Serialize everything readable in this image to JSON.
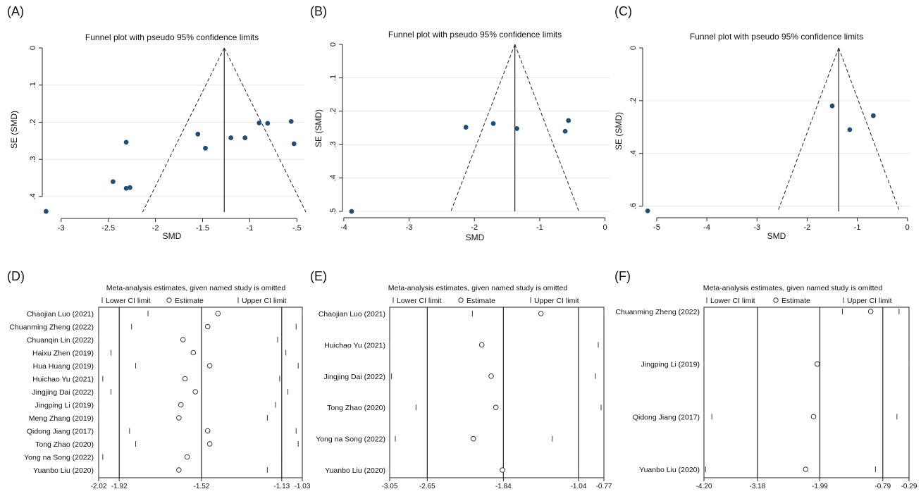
{
  "chart_data": [
    {
      "type": "scatter",
      "panel_label": "(A)",
      "title": "Funnel plot with pseudo 95% confidence limits",
      "xlabel": "SMD",
      "ylabel": "SE (SMD)",
      "x_ticks": [
        -3,
        -2.5,
        -2,
        -1.5,
        -1,
        -0.5
      ],
      "x_tick_labels": [
        "-3",
        "-2.5",
        "-2",
        "-1.5",
        "-1",
        "-.5"
      ],
      "y_ticks": [
        0,
        0.1,
        0.2,
        0.3,
        0.4
      ],
      "y_tick_labels": [
        "0",
        ".1",
        ".2",
        ".3",
        ".4"
      ],
      "xlim": [
        -3.2,
        -0.42
      ],
      "ylim": [
        0,
        0.442
      ],
      "pooled_smd": -1.27,
      "grid": true,
      "points": [
        {
          "x": -3.16,
          "y": 0.44
        },
        {
          "x": -2.45,
          "y": 0.36
        },
        {
          "x": -2.31,
          "y": 0.378
        },
        {
          "x": -2.27,
          "y": 0.376
        },
        {
          "x": -2.31,
          "y": 0.254
        },
        {
          "x": -1.55,
          "y": 0.232
        },
        {
          "x": -1.47,
          "y": 0.27
        },
        {
          "x": -1.2,
          "y": 0.242
        },
        {
          "x": -1.05,
          "y": 0.242
        },
        {
          "x": -0.9,
          "y": 0.202
        },
        {
          "x": -0.81,
          "y": 0.203
        },
        {
          "x": -0.56,
          "y": 0.198
        },
        {
          "x": -0.53,
          "y": 0.258
        }
      ]
    },
    {
      "type": "scatter",
      "panel_label": "(B)",
      "title": "Funnel plot with pseudo 95% confidence limits",
      "xlabel": "SMD",
      "ylabel": "SE (SMD)",
      "x_ticks": [
        -4,
        -3,
        -2,
        -1,
        0
      ],
      "x_tick_labels": [
        "-4",
        "-3",
        "-2",
        "-1",
        "0"
      ],
      "y_ticks": [
        0,
        0.1,
        0.2,
        0.3,
        0.4,
        0.5
      ],
      "y_tick_labels": [
        "0",
        ".1",
        ".2",
        ".3",
        ".4",
        ".5"
      ],
      "xlim": [
        -4.02,
        0.08
      ],
      "ylim": [
        0,
        0.5
      ],
      "pooled_smd": -1.38,
      "grid": true,
      "points": [
        {
          "x": -3.88,
          "y": 0.5
        },
        {
          "x": -2.13,
          "y": 0.248
        },
        {
          "x": -1.71,
          "y": 0.237
        },
        {
          "x": -1.35,
          "y": 0.252
        },
        {
          "x": -0.61,
          "y": 0.26
        },
        {
          "x": -0.56,
          "y": 0.228
        }
      ]
    },
    {
      "type": "scatter",
      "panel_label": "(C)",
      "title": "Funnel plot with pseudo 95% confidence limits",
      "xlabel": "SMD",
      "ylabel": "SE (SMD)",
      "x_ticks": [
        -5,
        -4,
        -3,
        -2,
        -1,
        0
      ],
      "x_tick_labels": [
        "-5",
        "-4",
        "-3",
        "-2",
        "-1",
        "0"
      ],
      "y_ticks": [
        0,
        0.2,
        0.4,
        0.6
      ],
      "y_tick_labels": [
        "0",
        ".2",
        ".4",
        ".6"
      ],
      "xlim": [
        -5.28,
        0.06
      ],
      "ylim": [
        0,
        0.62
      ],
      "pooled_smd": -1.37,
      "grid": true,
      "points": [
        {
          "x": -5.18,
          "y": 0.618
        },
        {
          "x": -1.5,
          "y": 0.22
        },
        {
          "x": -1.15,
          "y": 0.31
        },
        {
          "x": -0.68,
          "y": 0.257
        }
      ]
    },
    {
      "type": "sensitivity",
      "panel_label": "(D)",
      "title": "Meta-analysis estimates, given named study is omitted",
      "legend": [
        "Lower CI limit",
        "Estimate",
        "Upper CI limit"
      ],
      "x_ticks": [
        -2.02,
        -1.92,
        -1.52,
        -1.13,
        -1.03
      ],
      "x_tick_labels": [
        "-2.02",
        "-1.92",
        "-1.52",
        "-1.13",
        "-1.03"
      ],
      "xlim": [
        -2.02,
        -1.03
      ],
      "reference_lines": [
        -1.92,
        -1.52,
        -1.13
      ],
      "studies": [
        {
          "name": "Chaojian Luo (2021)",
          "lower": -1.78,
          "estimate": -1.44,
          "upper": -1.03
        },
        {
          "name": "Chuanming Zheng (2022)",
          "lower": -1.86,
          "estimate": -1.49,
          "upper": -1.06
        },
        {
          "name": "Chuanqin Lin (2022)",
          "lower": -2.02,
          "estimate": -1.61,
          "upper": -1.15
        },
        {
          "name": "Haixu Zhen (2019)",
          "lower": -1.96,
          "estimate": -1.56,
          "upper": -1.11
        },
        {
          "name": "Hua Huang (2019)",
          "lower": -1.84,
          "estimate": -1.48,
          "upper": -1.05
        },
        {
          "name": "Huichao Yu (2021)",
          "lower": -2.0,
          "estimate": -1.6,
          "upper": -1.14
        },
        {
          "name": "Jingjing Dai (2022)",
          "lower": -1.96,
          "estimate": -1.55,
          "upper": -1.1
        },
        {
          "name": "Jingping Li (2019)",
          "lower": -2.02,
          "estimate": -1.62,
          "upper": -1.16
        },
        {
          "name": "Meng Zhang (2019)",
          "lower": -2.02,
          "estimate": -1.63,
          "upper": -1.2
        },
        {
          "name": "Qidong Jiang (2017)",
          "lower": -1.87,
          "estimate": -1.49,
          "upper": -1.06
        },
        {
          "name": "Tong Zhao (2020)",
          "lower": -1.84,
          "estimate": -1.48,
          "upper": -1.05
        },
        {
          "name": "Yong na Song (2022)",
          "lower": -2.0,
          "estimate": -1.59,
          "upper": -1.13
        },
        {
          "name": "Yuanbo Liu (2020)",
          "lower": -2.02,
          "estimate": -1.63,
          "upper": -1.2
        }
      ]
    },
    {
      "type": "sensitivity",
      "panel_label": "(E)",
      "title": "Meta-analysis estimates, given named study is omitted",
      "legend": [
        "Lower CI limit",
        "Estimate",
        "Upper CI limit"
      ],
      "x_ticks": [
        -3.05,
        -2.65,
        -1.84,
        -1.04,
        -0.77
      ],
      "x_tick_labels": [
        "-3.05",
        "-2.65",
        "-1.84",
        "-1.04",
        "-0.77"
      ],
      "xlim": [
        -3.05,
        -0.77
      ],
      "reference_lines": [
        -2.65,
        -1.84,
        -1.04
      ],
      "studies": [
        {
          "name": "Chaojian Luo (2021)",
          "lower": -2.17,
          "estimate": -1.44,
          "upper": -0.77
        },
        {
          "name": "Huichao Yu (2021)",
          "lower": -3.05,
          "estimate": -2.07,
          "upper": -0.83
        },
        {
          "name": "Jingjing Dai (2022)",
          "lower": -3.03,
          "estimate": -1.97,
          "upper": -0.86
        },
        {
          "name": "Tong Zhao (2020)",
          "lower": -2.77,
          "estimate": -1.92,
          "upper": -0.8
        },
        {
          "name": "Yong na Song (2022)",
          "lower": -2.99,
          "estimate": -2.16,
          "upper": -1.32
        },
        {
          "name": "Yuanbo Liu (2020)",
          "lower": -3.05,
          "estimate": -1.85,
          "upper": -1.04
        }
      ]
    },
    {
      "type": "sensitivity",
      "panel_label": "(F)",
      "title": "Meta-analysis estimates, given named study is omitted",
      "legend": [
        "Lower CI limit",
        "Estimate",
        "Upper CI limit"
      ],
      "x_ticks": [
        -4.2,
        -3.18,
        -1.99,
        -0.79,
        -0.29
      ],
      "x_tick_labels": [
        "-4.20",
        "-3.18",
        "-1.99",
        "-0.79",
        "-0.29"
      ],
      "xlim": [
        -4.2,
        -0.29
      ],
      "reference_lines": [
        -3.18,
        -1.99,
        -0.79
      ],
      "studies": [
        {
          "name": "Chuanming Zheng (2022)",
          "lower": -1.56,
          "estimate": -1.02,
          "upper": -0.48
        },
        {
          "name": "Jingping Li (2019)",
          "lower": -4.2,
          "estimate": -2.04,
          "upper": -0.29
        },
        {
          "name": "Qidong Jiang (2017)",
          "lower": -4.05,
          "estimate": -2.11,
          "upper": -0.52
        },
        {
          "name": "Yuanbo Liu (2020)",
          "lower": -4.17,
          "estimate": -2.26,
          "upper": -0.93
        }
      ]
    }
  ]
}
